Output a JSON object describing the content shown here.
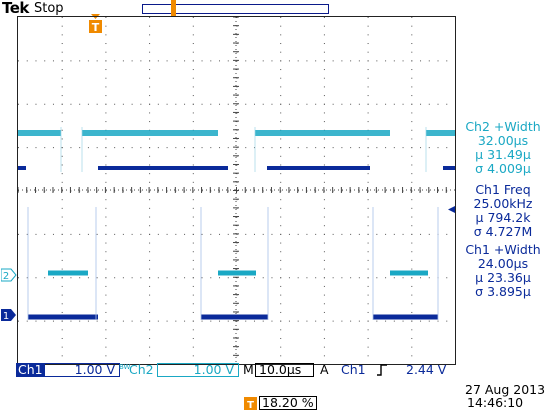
{
  "header": {
    "brand": "Tek",
    "acquisition_state": "Stop"
  },
  "colors": {
    "ch1": "#0a2a9a",
    "ch2": "#1aa8c4",
    "trigger": "#f08a00",
    "grid": "#444444"
  },
  "icons": {
    "trigger_position": "trigger-T-icon",
    "trigger_level": "arrow-left-icon"
  },
  "measurements": [
    {
      "title": "Ch2 +Width",
      "value": "32.00µs",
      "mean": "µ 31.49µ",
      "stddev": "σ 4.009µ",
      "color": "ch2"
    },
    {
      "title": "Ch1 Freq",
      "value": "25.00kHz",
      "mean": "µ 794.2k",
      "stddev": "σ 4.727M",
      "color": "ch1"
    },
    {
      "title": "Ch1 +Width",
      "value": "24.00µs",
      "mean": "µ 23.36µ",
      "stddev": "σ 3.895µ",
      "color": "ch1"
    }
  ],
  "channel_markers": {
    "ch1": "1",
    "ch2": "2"
  },
  "status": {
    "ch1_label": "Ch1",
    "ch1_scale": "1.00 V",
    "bw_label": "BW",
    "ch2_label": "Ch2",
    "ch2_scale": "1.00 V",
    "timebase_label": "M",
    "timebase": "10.0µs",
    "trigger_mode": "A",
    "trigger_source": "Ch1",
    "trigger_slope": "rising-edge-icon",
    "trigger_level": "2.44 V"
  },
  "trigger_position": "18.20 %",
  "trigger_position_icon_label": "T",
  "date": "27 Aug 2013",
  "time": "14:46:10"
}
